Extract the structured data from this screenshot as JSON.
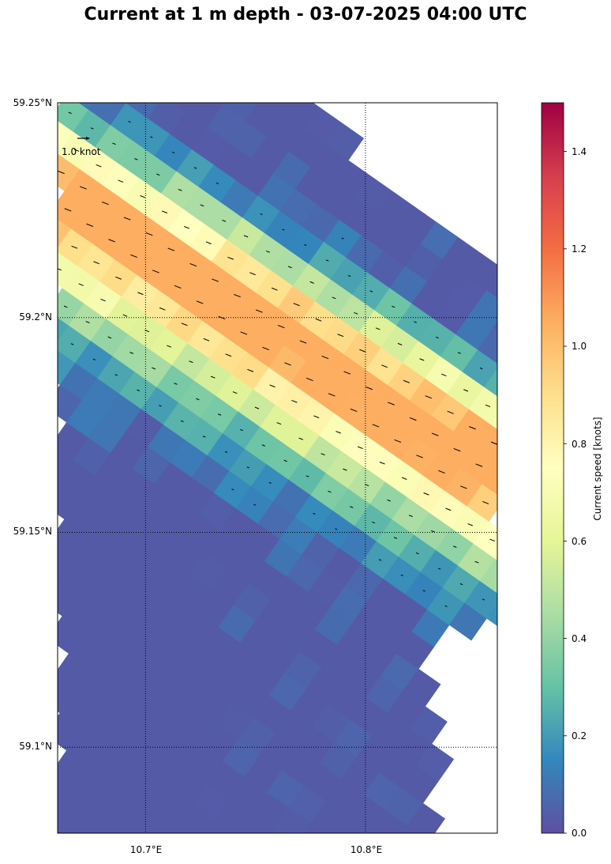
{
  "title": "Current at 1 m depth - 03-07-2025 04:00 UTC",
  "map": {
    "lon_range": [
      10.66,
      10.86
    ],
    "lat_range": [
      59.08,
      59.25
    ],
    "lat_ticks": [
      {
        "value": 59.25,
        "label": "59.25°N"
      },
      {
        "value": 59.2,
        "label": "59.2°N"
      },
      {
        "value": 59.15,
        "label": "59.15°N"
      },
      {
        "value": 59.1,
        "label": "59.1°N"
      }
    ],
    "lon_ticks": [
      {
        "value": 10.7,
        "label": "10.7°E"
      },
      {
        "value": 10.8,
        "label": "10.8°E"
      }
    ],
    "gridlines": true,
    "grid_style": "dotted",
    "reference_arrow": {
      "speed_knots": 1.0,
      "label": "1.0 knot"
    },
    "field": "current speed on a rotated model grid, coastal strip oriented NW-SE; fastest flow (about 0.8-1.0 knots) in a diagonal band, weak flow (under 0.2 knots) in the south-west and in near-shore cells"
  },
  "colorbar": {
    "label": "Current speed [knots]",
    "range": [
      0,
      1.5
    ],
    "ticks": [
      "0.0",
      "0.2",
      "0.4",
      "0.6",
      "0.8",
      "1.0",
      "1.2",
      "1.4"
    ],
    "colormap": "Spectral_r",
    "stops": [
      "#5e4fa2",
      "#3288bd",
      "#66c2a5",
      "#abdda4",
      "#e6f598",
      "#ffffbf",
      "#fee08b",
      "#fdae61",
      "#f46d43",
      "#d53e4f",
      "#9e0142"
    ]
  }
}
